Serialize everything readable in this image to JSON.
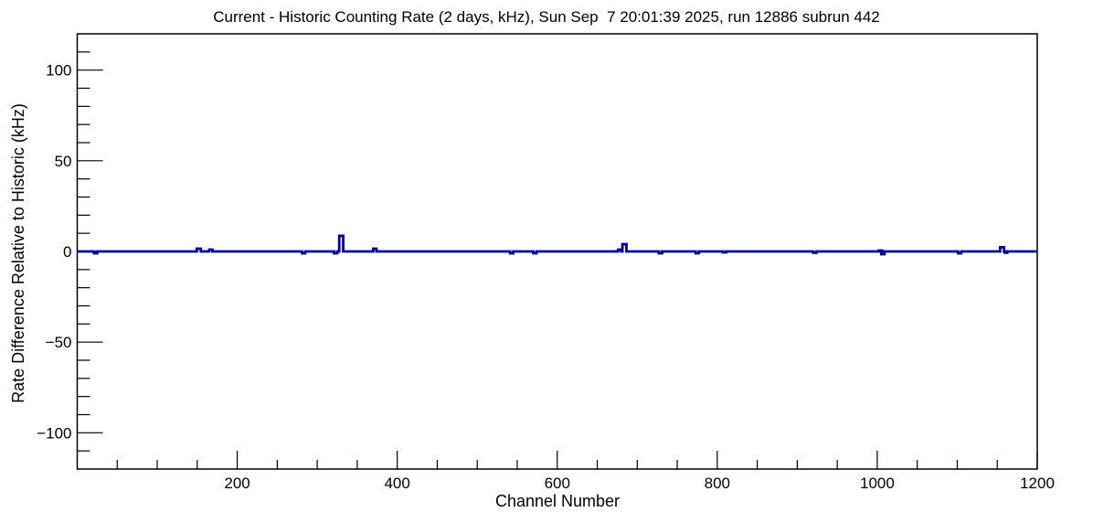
{
  "chart_data": {
    "type": "line",
    "title": "Current - Historic Counting Rate (2 days, kHz), Sun Sep  7 20:01:39 2025, run 12886 subrun 442",
    "xlabel": "Channel Number",
    "ylabel": "Rate Difference Relative to Historic (kHz)",
    "xlim": [
      0,
      1200
    ],
    "ylim": [
      -120,
      120
    ],
    "x_major_ticks": [
      200,
      400,
      600,
      800,
      1000,
      1200
    ],
    "x_tick_labels": [
      "200",
      "400",
      "600",
      "800",
      "1000",
      "1200"
    ],
    "x_minor_step": 50,
    "y_major_ticks": [
      -100,
      -50,
      0,
      50,
      100
    ],
    "y_tick_labels": [
      "−100",
      "−50",
      "0",
      "50",
      "100"
    ],
    "y_minor_step": 10,
    "grid": false,
    "legend": "none",
    "line_color": "#000099",
    "frame_color": "#000000",
    "background_color": "#ffffff",
    "baseline_value": 0,
    "spikes": [
      {
        "channel": 23,
        "value": -1.0,
        "width": 4
      },
      {
        "channel": 152,
        "value": 1.5,
        "width": 5
      },
      {
        "channel": 167,
        "value": 1.0,
        "width": 4
      },
      {
        "channel": 283,
        "value": -1.0,
        "width": 4
      },
      {
        "channel": 323,
        "value": -1.0,
        "width": 4
      },
      {
        "channel": 330,
        "value": 8.6,
        "width": 5
      },
      {
        "channel": 372,
        "value": 1.5,
        "width": 4
      },
      {
        "channel": 543,
        "value": -1.0,
        "width": 4
      },
      {
        "channel": 572,
        "value": -1.0,
        "width": 4
      },
      {
        "channel": 678,
        "value": 1.0,
        "width": 4
      },
      {
        "channel": 684,
        "value": 4.0,
        "width": 5
      },
      {
        "channel": 729,
        "value": -1.0,
        "width": 4
      },
      {
        "channel": 775,
        "value": -1.0,
        "width": 4
      },
      {
        "channel": 809,
        "value": -0.5,
        "width": 4
      },
      {
        "channel": 922,
        "value": -0.7,
        "width": 4
      },
      {
        "channel": 1004,
        "value": 0.5,
        "width": 4
      },
      {
        "channel": 1007,
        "value": -1.5,
        "width": 4
      },
      {
        "channel": 1103,
        "value": -1.0,
        "width": 4
      },
      {
        "channel": 1156,
        "value": 2.3,
        "width": 5
      },
      {
        "channel": 1161,
        "value": -0.7,
        "width": 3
      }
    ]
  }
}
